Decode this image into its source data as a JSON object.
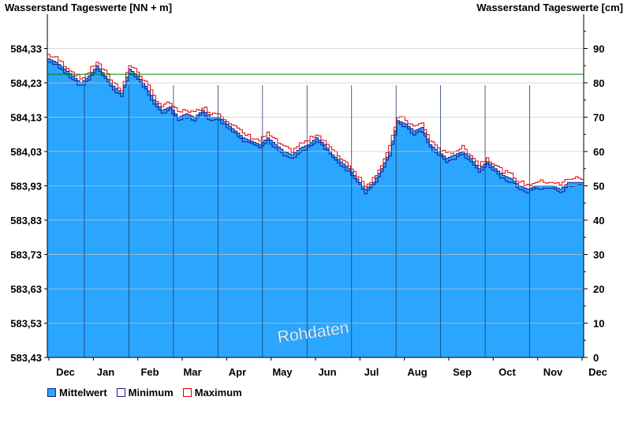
{
  "chart_data": {
    "type": "area",
    "title_left": "Wasserstand Tageswerte [NN + m]",
    "title_right": "Wasserstand Tageswerte [cm]",
    "watermark": "Rohdaten",
    "x_labels": [
      "Dec",
      "Jan",
      "Feb",
      "Mar",
      "Apr",
      "May",
      "Jun",
      "Jul",
      "Aug",
      "Sep",
      "Oct",
      "Nov",
      "Dec"
    ],
    "y_left_ticks": [
      "583,43",
      "583,53",
      "583,63",
      "583,73",
      "583,83",
      "583,93",
      "584,03",
      "584,13",
      "584,23",
      "584,33"
    ],
    "y_right_ticks": [
      "0",
      "10",
      "20",
      "30",
      "40",
      "50",
      "60",
      "70",
      "80",
      "90"
    ],
    "y_left_range": [
      583.43,
      584.43
    ],
    "y_right_range": [
      0,
      100
    ],
    "reference_level_cm": 82.5,
    "grid": true,
    "legend_position": "bottom-left",
    "colors": {
      "mean": "#2aa6ff",
      "min": "#1a1a8c",
      "max": "#e00000",
      "reference": "#008000"
    },
    "series": [
      {
        "name": "Mittelwert",
        "key": "mean"
      },
      {
        "name": "Minimum",
        "key": "min"
      },
      {
        "name": "Maximum",
        "key": "max"
      }
    ],
    "mean_cm": [
      87,
      86,
      84,
      82,
      80,
      82,
      85,
      82,
      79,
      77,
      84,
      82,
      79,
      75,
      72,
      73,
      70,
      71,
      70,
      72,
      70,
      70,
      68,
      66,
      64,
      63,
      62,
      64,
      62,
      60,
      59,
      61,
      62,
      64,
      62,
      59,
      57,
      55,
      52,
      49,
      51,
      55,
      60,
      69,
      68,
      66,
      67,
      62,
      60,
      58,
      59,
      60,
      58,
      55,
      57,
      55,
      53,
      52,
      50,
      49,
      50,
      50,
      50,
      49,
      51,
      51,
      51
    ]
  }
}
